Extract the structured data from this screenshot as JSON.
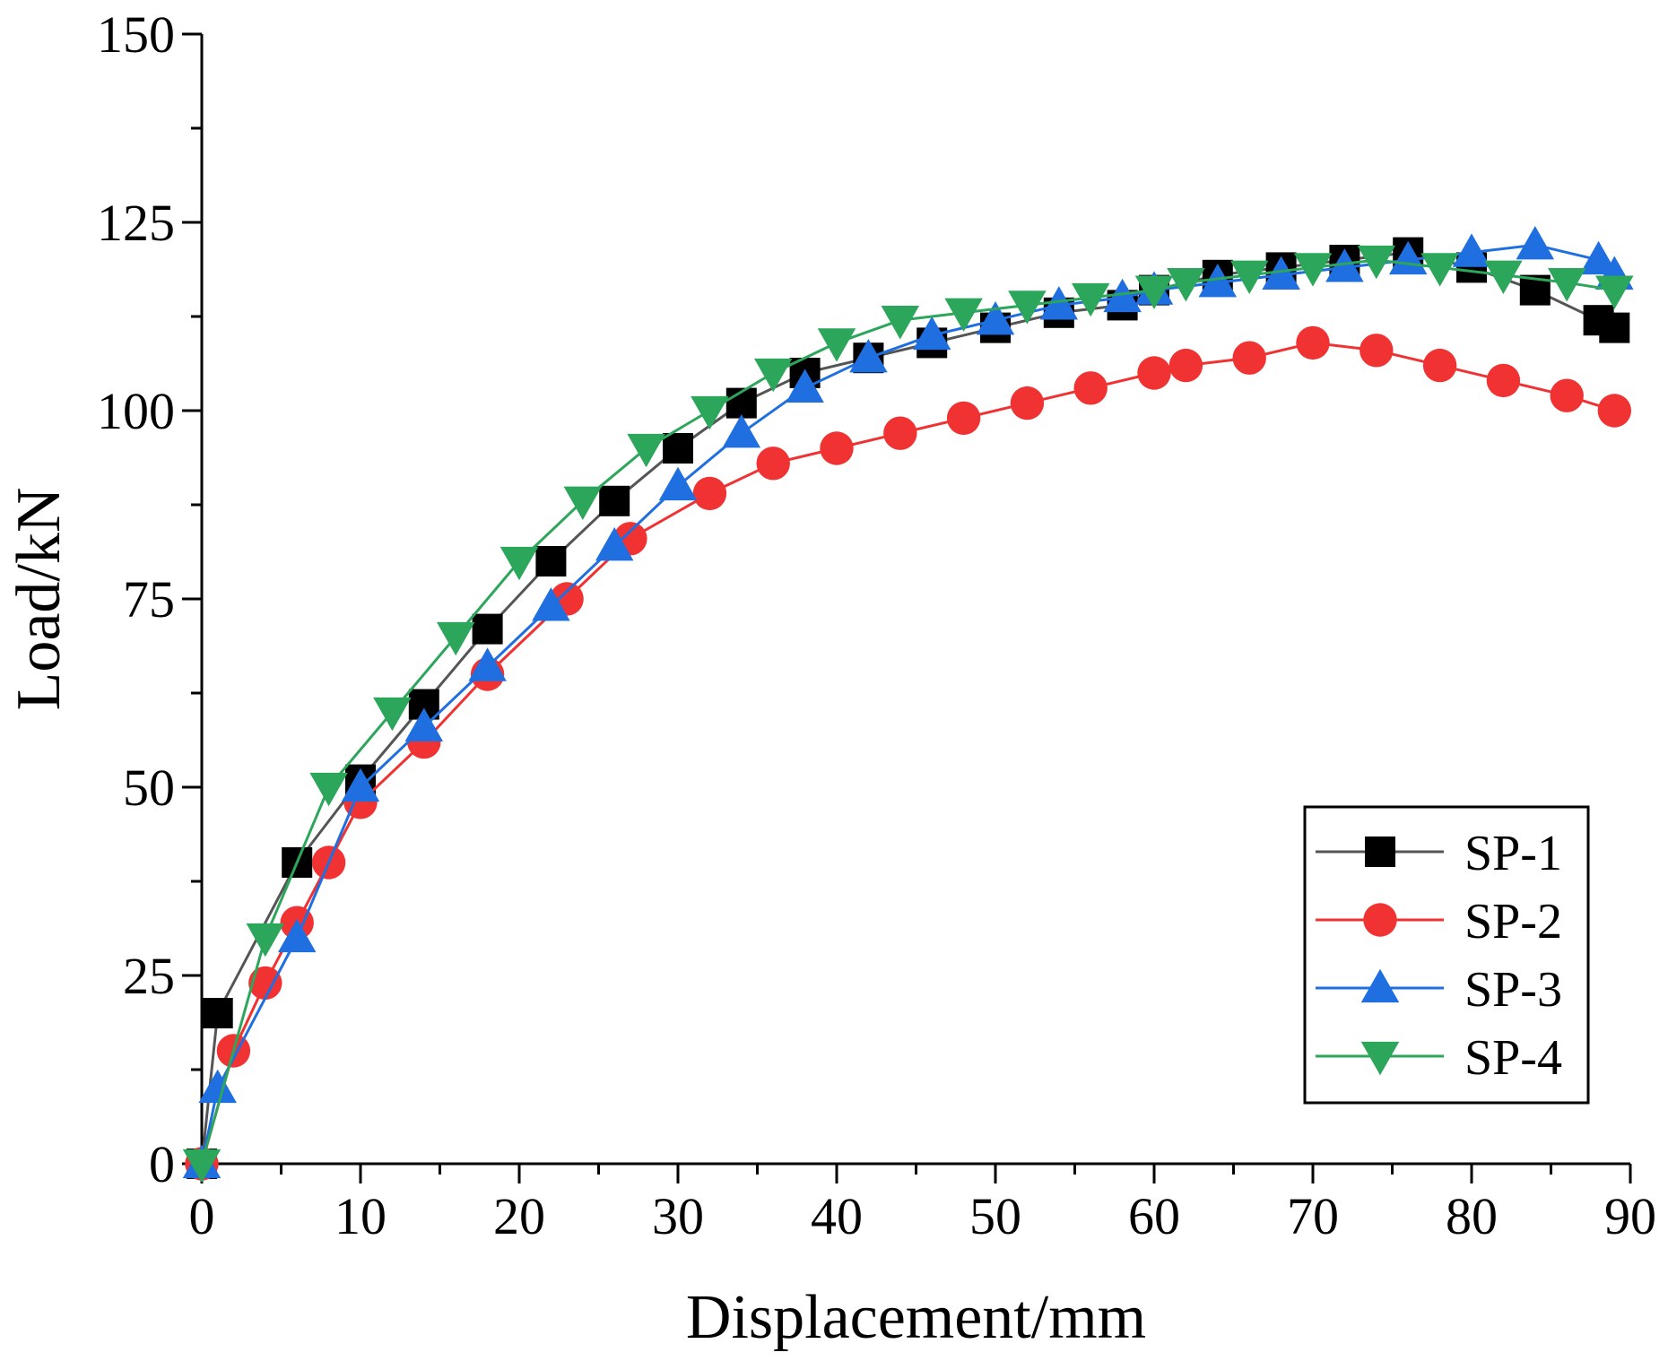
{
  "chart_data": {
    "type": "line",
    "title": "",
    "xlabel": "Displacement/mm",
    "ylabel": "Load/kN",
    "xlim": [
      0,
      90
    ],
    "ylim": [
      0,
      150
    ],
    "xticks": [
      0,
      10,
      20,
      30,
      40,
      50,
      60,
      70,
      80,
      90
    ],
    "yticks": [
      0,
      25,
      50,
      75,
      100,
      125,
      150
    ],
    "grid": false,
    "legend_position": "bottom-right",
    "series": [
      {
        "name": "SP-1",
        "color": "#000000",
        "line_color": "#555555",
        "marker": "square",
        "x": [
          0,
          1,
          6,
          10,
          14,
          18,
          22,
          26,
          30,
          34,
          38,
          42,
          46,
          50,
          54,
          58,
          60,
          64,
          68,
          72,
          76,
          80,
          84,
          88,
          89
        ],
        "y": [
          0,
          20,
          40,
          51,
          61,
          71,
          80,
          88,
          95,
          101,
          105,
          107,
          109,
          111,
          113,
          114,
          116,
          118,
          119,
          120,
          121,
          119,
          116,
          112,
          111
        ]
      },
      {
        "name": "SP-2",
        "color": "#f03232",
        "line_color": "#f03232",
        "marker": "circle",
        "x": [
          0,
          2,
          4,
          6,
          8,
          10,
          14,
          18,
          23,
          27,
          32,
          36,
          40,
          44,
          48,
          52,
          56,
          60,
          62,
          66,
          70,
          74,
          78,
          82,
          86,
          89
        ],
        "y": [
          0,
          15,
          24,
          32,
          40,
          48,
          56,
          65,
          75,
          83,
          89,
          93,
          95,
          97,
          99,
          101,
          103,
          105,
          106,
          107,
          109,
          108,
          106,
          104,
          102,
          100
        ]
      },
      {
        "name": "SP-3",
        "color": "#1f6fe0",
        "line_color": "#1f6fe0",
        "marker": "triangle-up",
        "x": [
          0,
          1,
          6,
          10,
          14,
          18,
          22,
          26,
          30,
          34,
          38,
          42,
          46,
          50,
          54,
          58,
          60,
          64,
          68,
          72,
          76,
          80,
          84,
          88,
          89
        ],
        "y": [
          0,
          10,
          30,
          50,
          58,
          66,
          74,
          82,
          90,
          97,
          103,
          107,
          110,
          112,
          114,
          115,
          116,
          117,
          118,
          119,
          120,
          121,
          122,
          120,
          118
        ]
      },
      {
        "name": "SP-4",
        "color": "#2ca65a",
        "line_color": "#2ca65a",
        "marker": "triangle-down",
        "x": [
          0,
          4,
          8,
          12,
          16,
          20,
          24,
          28,
          32,
          36,
          40,
          44,
          48,
          52,
          56,
          60,
          62,
          66,
          70,
          74,
          78,
          82,
          86,
          89
        ],
        "y": [
          0,
          30,
          50,
          60,
          70,
          80,
          88,
          95,
          100,
          105,
          109,
          112,
          113,
          114,
          115,
          116,
          117,
          118,
          119,
          120,
          119,
          118,
          117,
          116
        ]
      }
    ]
  }
}
